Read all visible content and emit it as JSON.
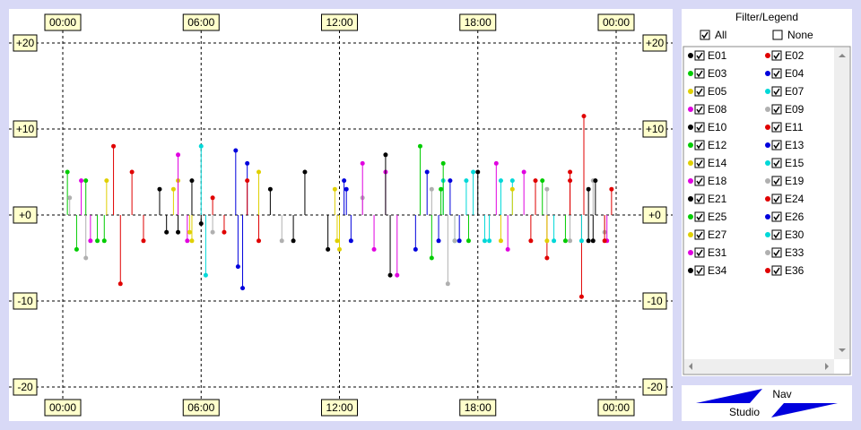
{
  "chart_data": {
    "type": "scatter",
    "xlim": [
      0,
      24
    ],
    "xticks": [
      {
        "value": 0,
        "label": "00:00"
      },
      {
        "value": 6,
        "label": "06:00"
      },
      {
        "value": 12,
        "label": "12:00"
      },
      {
        "value": 18,
        "label": "18:00"
      },
      {
        "value": 24,
        "label": "00:00"
      }
    ],
    "ylim": [
      -20,
      20
    ],
    "yticks": [
      {
        "value": 20,
        "label": "+20"
      },
      {
        "value": 10,
        "label": "+10"
      },
      {
        "value": 0,
        "label": "+0"
      },
      -10,
      -20
    ],
    "grid": true,
    "series": [
      {
        "name": "E01",
        "color": "#000000",
        "x": [
          4.2,
          5.0,
          5.6,
          6.0
        ],
        "values": [
          3,
          -2,
          4,
          -1
        ]
      },
      {
        "name": "E02",
        "color": "#e00000",
        "x": [
          2.2,
          2.5,
          3.0,
          3.5
        ],
        "values": [
          8,
          -8,
          5,
          -3
        ]
      },
      {
        "name": "E03",
        "color": "#00cc00",
        "x": [
          0.2,
          0.6,
          1.0,
          1.5
        ],
        "values": [
          5,
          -4,
          4,
          -3
        ]
      },
      {
        "name": "E04",
        "color": "#0000dd",
        "x": [
          7.5,
          7.8,
          8.0,
          7.6
        ],
        "values": [
          7.5,
          -8.5,
          6,
          -6
        ]
      },
      {
        "name": "E05",
        "color": "#e0d000",
        "x": [
          5.0,
          5.6,
          12.0,
          11.8
        ],
        "values": [
          4,
          -3,
          -4,
          3
        ]
      },
      {
        "name": "E07",
        "color": "#00d8d8",
        "x": [
          6.0,
          6.2,
          16.5,
          17.0
        ],
        "values": [
          8,
          -7,
          4,
          -3
        ]
      },
      {
        "name": "E08",
        "color": "#e000e0",
        "x": [
          0.8,
          1.2,
          5.0,
          5.4
        ],
        "values": [
          4,
          -3,
          7,
          -3
        ]
      },
      {
        "name": "E09",
        "color": "#b0b0b0",
        "x": [
          0.3,
          6.5,
          13,
          23.5
        ],
        "values": [
          2,
          -2,
          2,
          -2
        ]
      },
      {
        "name": "E10",
        "color": "#000000",
        "x": [
          9.0,
          10.0,
          10.5,
          11.5
        ],
        "values": [
          3,
          -3,
          5,
          -4
        ]
      },
      {
        "name": "E11",
        "color": "#e00000",
        "x": [
          6.5,
          7.0,
          8.0,
          8.5
        ],
        "values": [
          2,
          -2,
          4,
          -3
        ]
      },
      {
        "name": "E12",
        "color": "#00cc00",
        "x": [
          15.5,
          16.0,
          16.5,
          1.8
        ],
        "values": [
          8,
          -5,
          6,
          -3
        ]
      },
      {
        "name": "E13",
        "color": "#0000dd",
        "x": [
          12.2,
          12.5,
          15.8,
          16.3
        ],
        "values": [
          4,
          -3,
          5,
          -3
        ]
      },
      {
        "name": "E14",
        "color": "#e0d000",
        "x": [
          4.8,
          5.5,
          8.5,
          11.9
        ],
        "values": [
          3,
          -2,
          5,
          -3
        ]
      },
      {
        "name": "E15",
        "color": "#00d8d8",
        "x": [
          17.5,
          18.5,
          19.5,
          21.3
        ],
        "values": [
          4,
          -3,
          4,
          -3
        ]
      },
      {
        "name": "E18",
        "color": "#e000e0",
        "x": [
          13.0,
          13.5,
          14.0,
          14.5
        ],
        "values": [
          6,
          -4,
          5,
          -7
        ]
      },
      {
        "name": "E19",
        "color": "#b0b0b0",
        "x": [
          16.0,
          17.0,
          21.0,
          22.0
        ],
        "values": [
          3,
          -3,
          3,
          -3
        ]
      },
      {
        "name": "E21",
        "color": "#000000",
        "x": [
          14.0,
          14.2,
          18.0,
          22.8
        ],
        "values": [
          7,
          -7,
          5,
          -3
        ]
      },
      {
        "name": "E24",
        "color": "#e00000",
        "x": [
          20.5,
          21.0,
          22.0,
          22.6,
          22.5
        ],
        "values": [
          4,
          -5,
          5,
          11.5,
          -9.5
        ]
      },
      {
        "name": "E25",
        "color": "#00cc00",
        "x": [
          16.4,
          17.6,
          20.8,
          21.8
        ],
        "values": [
          3,
          -3,
          4,
          -3
        ]
      },
      {
        "name": "E26",
        "color": "#0000dd",
        "x": [
          12.3,
          15.3,
          16.8,
          17.2
        ],
        "values": [
          3,
          -4,
          4,
          -3
        ]
      },
      {
        "name": "E27",
        "color": "#e0d000",
        "x": [
          1.9,
          19.0,
          19.5,
          21.0
        ],
        "values": [
          4,
          -3,
          3,
          -3
        ]
      },
      {
        "name": "E30",
        "color": "#00d8d8",
        "x": [
          17.8,
          18.3,
          19.0,
          22.5
        ],
        "values": [
          5,
          -3,
          4,
          -3
        ]
      },
      {
        "name": "E31",
        "color": "#e000e0",
        "x": [
          18.8,
          19.3,
          20.0,
          23.6
        ],
        "values": [
          6,
          -4,
          5,
          -3
        ]
      },
      {
        "name": "E33",
        "color": "#b0b0b0",
        "x": [
          1.0,
          9.5,
          16.7,
          23.0
        ],
        "values": [
          -5,
          -3,
          -8,
          4
        ]
      },
      {
        "name": "E34",
        "color": "#000000",
        "x": [
          22.8,
          23.0,
          23.1,
          4.5
        ],
        "values": [
          3,
          -3,
          4,
          -2
        ]
      },
      {
        "name": "E36",
        "color": "#e00000",
        "x": [
          22.0,
          23.5,
          23.8,
          20.3
        ],
        "values": [
          4,
          -3,
          3,
          -3
        ]
      }
    ]
  },
  "panel": {
    "title": "Filter/Legend",
    "all": "All",
    "none": "None"
  },
  "nav": {
    "top": "Nav",
    "bottom": "Studio"
  }
}
